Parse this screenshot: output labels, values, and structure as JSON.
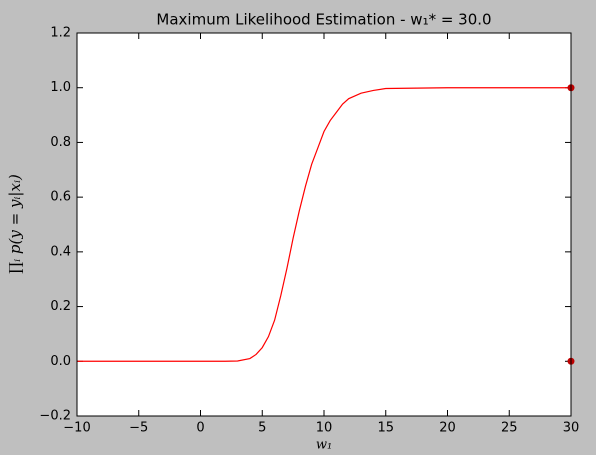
{
  "chart_data": {
    "type": "line",
    "title": "Maximum Likelihood Estimation - w₁* = 30.0",
    "x_label": "w₁",
    "y_label": "∏ᵢ p(y = yᵢ|xᵢ)",
    "x": [
      -10,
      -5,
      0,
      2,
      3,
      4,
      4.5,
      5,
      5.5,
      6,
      6.5,
      7,
      7.5,
      8,
      8.5,
      9,
      9.5,
      10,
      10.5,
      11,
      11.5,
      12,
      13,
      14,
      15,
      20,
      25,
      30
    ],
    "series": [
      {
        "color": "#ff0000",
        "values": [
          0,
          0,
          0,
          0,
          0.001,
          0.01,
          0.025,
          0.05,
          0.09,
          0.15,
          0.24,
          0.34,
          0.45,
          0.55,
          0.64,
          0.72,
          0.78,
          0.84,
          0.88,
          0.91,
          0.94,
          0.96,
          0.98,
          0.99,
          0.997,
          1,
          1,
          1
        ]
      }
    ],
    "points": {
      "color": "#c00000",
      "x": [
        30,
        30
      ],
      "y": [
        1.0,
        0.0
      ]
    },
    "xlim": [
      -10,
      30
    ],
    "ylim": [
      -0.2,
      1.2
    ],
    "xticks": [
      {
        "value": -10,
        "label": "−10"
      },
      {
        "value": -5,
        "label": "−5"
      },
      0,
      5,
      10,
      15,
      20,
      25,
      30
    ],
    "yticks": [
      {
        "value": -0.2,
        "label": "−0.2"
      },
      {
        "value": 0,
        "label": "0.0"
      },
      0.2,
      0.4,
      0.6,
      0.8,
      {
        "value": 1,
        "label": "1.0"
      },
      1.2
    ],
    "grid": false
  }
}
